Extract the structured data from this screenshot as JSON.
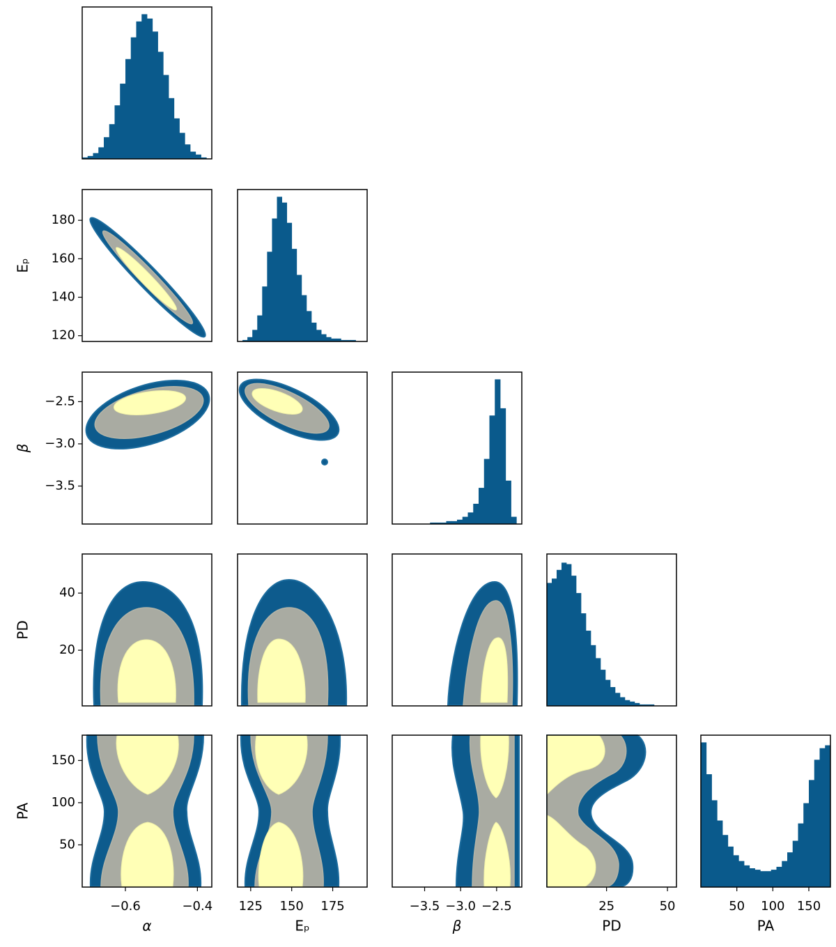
{
  "chart_data": {
    "type": "corner",
    "hist_color": "#0a5a8c",
    "hist_ylim": [
      0,
      105
    ],
    "parameters": [
      {
        "label": "α",
        "lim": [
          -0.72,
          -0.36
        ],
        "ticks": [
          {
            "value": -0.6,
            "label": "−0.6"
          },
          {
            "value": -0.4,
            "label": "−0.4"
          }
        ],
        "bins": [
          -0.72,
          -0.705,
          -0.69,
          -0.675,
          -0.66,
          -0.645,
          -0.63,
          -0.615,
          -0.6,
          -0.585,
          -0.57,
          -0.555,
          -0.54,
          -0.525,
          -0.51,
          -0.495,
          -0.48,
          -0.465,
          -0.45,
          -0.435,
          -0.42,
          -0.405,
          -0.39,
          -0.375,
          -0.36
        ],
        "counts": [
          1,
          2,
          4,
          8,
          15,
          24,
          37,
          52,
          69,
          84,
          95,
          100,
          97,
          88,
          74,
          58,
          42,
          28,
          18,
          10,
          5,
          3,
          1,
          0
        ]
      },
      {
        "label": "Eₚ",
        "lim": [
          117,
          196
        ],
        "ticks": [
          120,
          125,
          140,
          150,
          160,
          175,
          180
        ],
        "bins": [
          117,
          120,
          123,
          126,
          129,
          132,
          135,
          138,
          141,
          144,
          147,
          150,
          153,
          156,
          159,
          162,
          165,
          168,
          171,
          174,
          177,
          180,
          183,
          186,
          189,
          192,
          195
        ],
        "counts": [
          0,
          1,
          3,
          8,
          18,
          38,
          62,
          85,
          100,
          96,
          82,
          64,
          46,
          32,
          21,
          13,
          8,
          5,
          3,
          2,
          2,
          1,
          1,
          1,
          0,
          0
        ]
      },
      {
        "label": "β",
        "lim": [
          -3.95,
          -2.15
        ],
        "ticks": [
          {
            "value": -3.5,
            "label": "−3.5"
          },
          {
            "value": -3.0,
            "label": "−3.0"
          },
          {
            "value": -2.5,
            "label": "−2.5"
          }
        ],
        "bins": [
          -3.95,
          -3.875,
          -3.8,
          -3.725,
          -3.65,
          -3.575,
          -3.5,
          -3.425,
          -3.35,
          -3.275,
          -3.2,
          -3.125,
          -3.05,
          -2.975,
          -2.9,
          -2.825,
          -2.75,
          -2.675,
          -2.6,
          -2.525,
          -2.45,
          -2.375,
          -2.3,
          -2.225,
          -2.15
        ],
        "counts": [
          0,
          0,
          0,
          0,
          0,
          0,
          0,
          1,
          1,
          1,
          2,
          2,
          3,
          5,
          8,
          14,
          25,
          45,
          75,
          100,
          80,
          30,
          5,
          0
        ]
      },
      {
        "label": "PD",
        "lim": [
          0.5,
          53.7
        ],
        "ticks": [
          20,
          25,
          40,
          50
        ],
        "bins": [
          0.5,
          2.5,
          4.5,
          6.5,
          8.5,
          10.5,
          12.5,
          14.5,
          16.5,
          18.5,
          20.5,
          22.5,
          24.5,
          26.5,
          28.5,
          30.5,
          32.5,
          34.5,
          36.5,
          38.5,
          40.5,
          42.5,
          44.5,
          46.5,
          48.5,
          50.5,
          52.5
        ],
        "counts": [
          85,
          88,
          94,
          99,
          98,
          90,
          78,
          64,
          52,
          42,
          33,
          25,
          18,
          13,
          9,
          6,
          4,
          3,
          2,
          1,
          1,
          1,
          0,
          0,
          0,
          0
        ]
      },
      {
        "label": "PA",
        "lim": [
          0,
          180
        ],
        "ticks": [
          50,
          100,
          150
        ],
        "bins": [
          0,
          7.5,
          15,
          22.5,
          30,
          37.5,
          45,
          52.5,
          60,
          67.5,
          75,
          82.5,
          90,
          97.5,
          105,
          112.5,
          120,
          127.5,
          135,
          142.5,
          150,
          157.5,
          165,
          172.5,
          180
        ],
        "counts": [
          100,
          78,
          60,
          46,
          36,
          28,
          22,
          18,
          15,
          13,
          12,
          11,
          11,
          12,
          14,
          18,
          24,
          32,
          44,
          58,
          74,
          88,
          96,
          98
        ]
      }
    ],
    "x_ticks_shown": [
      [
        -0.6,
        -0.4
      ],
      [
        125,
        150,
        175
      ],
      [
        -3.5,
        -3.0,
        -2.5
      ],
      [
        25,
        50
      ],
      [
        50,
        100,
        150
      ]
    ],
    "y_ticks_shown": [
      [],
      [
        120,
        140,
        160,
        180
      ],
      [
        -3.5,
        -3.0,
        -2.5
      ],
      [
        20,
        40
      ],
      [
        50,
        100,
        150
      ]
    ]
  }
}
